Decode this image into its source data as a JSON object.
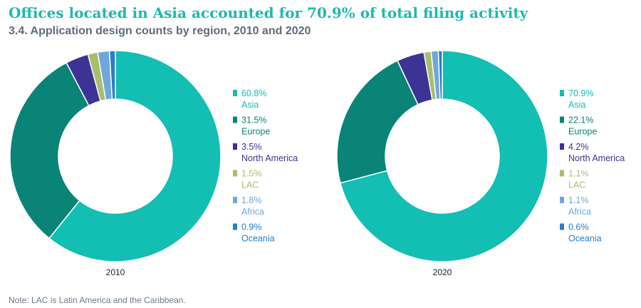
{
  "title": "Offices located in Asia accounted for 70.9% of total filing activity",
  "subtitle": "3.4. Application design counts by region, 2010 and 2020",
  "note": "Note: LAC is Latin America and the Caribbean.",
  "colors": {
    "Asia": "#13beb3",
    "Europe": "#0a8477",
    "North America": "#3c3394",
    "LAC": "#aabd6a",
    "Africa": "#6ea8db",
    "Oceania": "#2a7ec2"
  },
  "chart_data": [
    {
      "type": "pie",
      "variant": "donut",
      "label": "2010",
      "legend_position": "right",
      "slices": [
        {
          "name": "Asia",
          "value": 60.8,
          "label": "60.8%"
        },
        {
          "name": "Europe",
          "value": 31.5,
          "label": "31.5%"
        },
        {
          "name": "North America",
          "value": 3.5,
          "label": "3.5%"
        },
        {
          "name": "LAC",
          "value": 1.5,
          "label": "1.5%"
        },
        {
          "name": "Africa",
          "value": 1.8,
          "label": "1.8%"
        },
        {
          "name": "Oceania",
          "value": 0.9,
          "label": "0.9%"
        }
      ]
    },
    {
      "type": "pie",
      "variant": "donut",
      "label": "2020",
      "legend_position": "right",
      "slices": [
        {
          "name": "Asia",
          "value": 70.9,
          "label": "70.9%"
        },
        {
          "name": "Europe",
          "value": 22.1,
          "label": "22.1%"
        },
        {
          "name": "North America",
          "value": 4.2,
          "label": "4.2%"
        },
        {
          "name": "LAC",
          "value": 1.1,
          "label": "1.1%"
        },
        {
          "name": "Africa",
          "value": 1.1,
          "label": "1.1%"
        },
        {
          "name": "Oceania",
          "value": 0.6,
          "label": "0.6%"
        }
      ]
    }
  ]
}
